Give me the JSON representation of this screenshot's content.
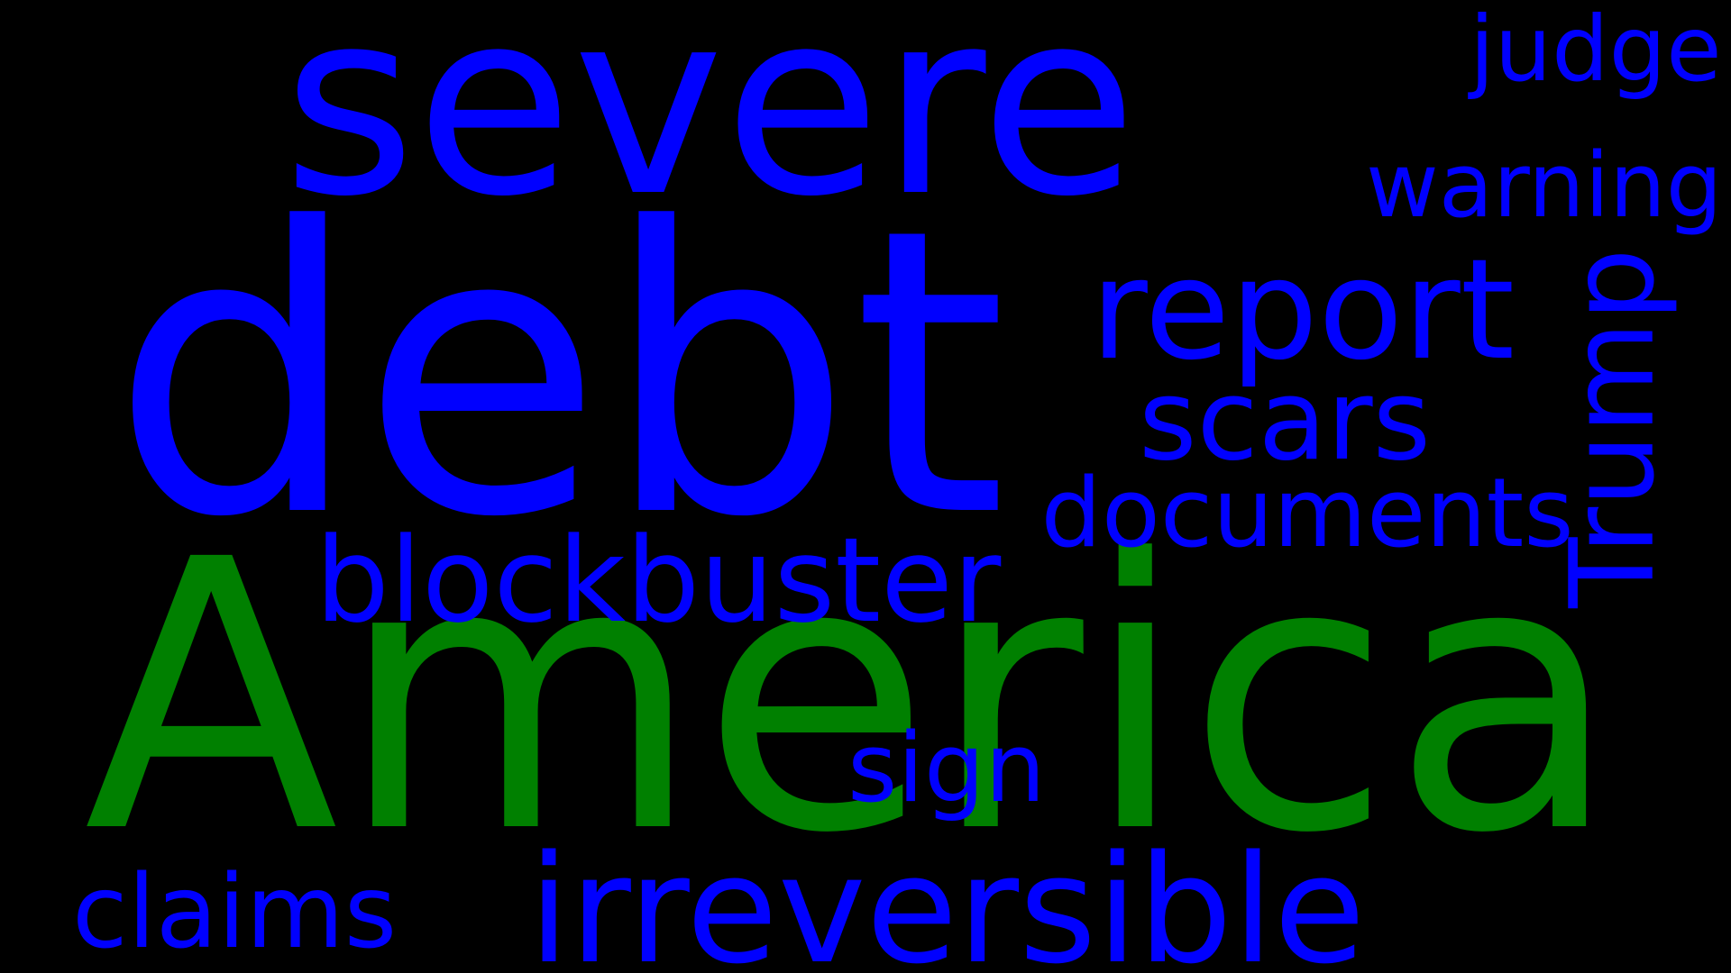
{
  "background": "#000000",
  "colors": {
    "blue": "#0000ff",
    "green": "#008000"
  },
  "words": [
    {
      "text": "severe",
      "color": "#0000ff",
      "orientation": "horizontal"
    },
    {
      "text": "debt",
      "color": "#0000ff",
      "orientation": "horizontal"
    },
    {
      "text": "America",
      "color": "#008000",
      "orientation": "horizontal"
    },
    {
      "text": "report",
      "color": "#0000ff",
      "orientation": "horizontal"
    },
    {
      "text": "scars",
      "color": "#0000ff",
      "orientation": "horizontal"
    },
    {
      "text": "documents",
      "color": "#0000ff",
      "orientation": "horizontal"
    },
    {
      "text": "blockbuster",
      "color": "#0000ff",
      "orientation": "horizontal"
    },
    {
      "text": "Trump",
      "color": "#0000ff",
      "orientation": "vertical"
    },
    {
      "text": "judge",
      "color": "#0000ff",
      "orientation": "horizontal"
    },
    {
      "text": "warning",
      "color": "#0000ff",
      "orientation": "horizontal"
    },
    {
      "text": "sign",
      "color": "#0000ff",
      "orientation": "horizontal"
    },
    {
      "text": "claims",
      "color": "#0000ff",
      "orientation": "horizontal"
    },
    {
      "text": "irreversible",
      "color": "#0000ff",
      "orientation": "horizontal"
    }
  ]
}
